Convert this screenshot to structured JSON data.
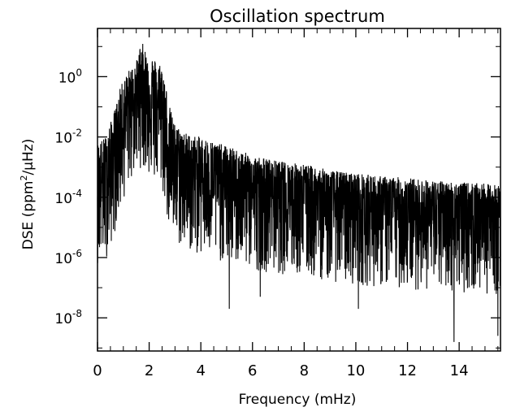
{
  "chart_data": {
    "type": "line",
    "title": "Oscillation spectrum",
    "xlabel": "Frequency (mHz)",
    "ylabel": "DSE (ppm²/µHz)",
    "ylabel_parts": {
      "pre": "DSE (ppm",
      "sup": "2",
      "post": "/µHz)"
    },
    "xlim": [
      0,
      15.6
    ],
    "ylim_log10": [
      -9.1,
      1.6
    ],
    "yscale": "log",
    "x_ticks": [
      0,
      2,
      4,
      6,
      8,
      10,
      12,
      14
    ],
    "x_tick_labels": [
      "0",
      "2",
      "4",
      "6",
      "8",
      "10",
      "12",
      "14"
    ],
    "y_ticks_log10": [
      0,
      -2,
      -4,
      -6,
      -8
    ],
    "y_tick_labels": [
      {
        "base": "10",
        "exp": "0"
      },
      {
        "base": "10",
        "exp": "-2"
      },
      {
        "base": "10",
        "exp": "-4"
      },
      {
        "base": "10",
        "exp": "-6"
      },
      {
        "base": "10",
        "exp": "-8"
      }
    ],
    "grid": false,
    "line_color": "#000000",
    "envelope": {
      "description": "log10 upper envelope vs frequency (mHz)",
      "x": [
        0.0,
        0.3,
        0.6,
        0.9,
        1.2,
        1.5,
        1.7,
        1.9,
        2.2,
        2.5,
        2.8,
        3.0,
        3.5,
        4.0,
        5.0,
        6.0,
        7.0,
        8.0,
        9.0,
        10.0,
        11.0,
        12.0,
        13.0,
        14.0,
        15.0,
        15.6
      ],
      "upper": [
        -2.2,
        -2.0,
        -1.3,
        -0.3,
        0.2,
        0.5,
        1.2,
        0.8,
        0.6,
        0.4,
        -1.0,
        -1.6,
        -1.9,
        -2.0,
        -2.3,
        -2.6,
        -2.8,
        -2.9,
        -3.1,
        -3.2,
        -3.3,
        -3.35,
        -3.45,
        -3.5,
        -3.55,
        -3.6
      ],
      "median": [
        -3.6,
        -3.5,
        -2.8,
        -1.8,
        -1.0,
        -0.6,
        -0.4,
        -0.6,
        -0.9,
        -1.2,
        -2.6,
        -3.0,
        -3.2,
        -3.35,
        -3.6,
        -3.8,
        -3.95,
        -4.05,
        -4.2,
        -4.3,
        -4.4,
        -4.45,
        -4.5,
        -4.55,
        -4.6,
        -4.65
      ]
    },
    "notable_minima": [
      {
        "x": 5.1,
        "log10_y": -7.7
      },
      {
        "x": 6.3,
        "log10_y": -7.3
      },
      {
        "x": 10.1,
        "log10_y": -7.7
      },
      {
        "x": 13.8,
        "log10_y": -8.8
      },
      {
        "x": 15.5,
        "log10_y": -8.6
      }
    ]
  }
}
